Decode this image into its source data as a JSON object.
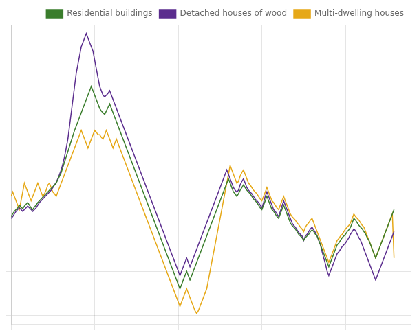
{
  "chart_data": {
    "type": "line",
    "series": [
      {
        "name": "Residential buildings",
        "color": "#3a7d2c",
        "values": [
          1.2,
          1.5,
          1.8,
          2.0,
          2.2,
          2.5,
          2.3,
          2.1,
          2.4,
          2.6,
          2.8,
          2.5,
          2.2,
          2.0,
          2.3,
          2.5,
          2.8,
          3.0,
          3.2,
          3.4,
          3.6,
          3.8,
          4.0,
          4.2,
          4.4,
          4.6,
          4.8,
          5.0,
          5.4,
          5.8,
          6.2,
          6.8,
          7.4,
          8.0,
          8.6,
          9.2,
          9.8,
          10.4,
          11.0,
          11.5,
          12.0,
          12.5,
          13.0,
          13.5,
          14.0,
          14.5,
          15.0,
          15.5,
          16.0,
          15.5,
          15.0,
          14.5,
          14.0,
          13.5,
          13.2,
          13.0,
          12.8,
          13.2,
          13.6,
          14.0,
          13.5,
          13.0,
          12.5,
          12.0,
          11.5,
          11.0,
          10.5,
          10.0,
          9.5,
          9.0,
          8.5,
          8.0,
          7.5,
          7.0,
          6.5,
          6.0,
          5.5,
          5.0,
          4.5,
          4.0,
          3.5,
          3.0,
          2.5,
          2.0,
          1.5,
          1.0,
          0.5,
          0.0,
          -0.5,
          -1.0,
          -1.5,
          -2.0,
          -2.5,
          -3.0,
          -3.5,
          -4.0,
          -4.5,
          -5.0,
          -5.5,
          -6.0,
          -6.5,
          -7.0,
          -6.5,
          -6.0,
          -5.5,
          -5.0,
          -5.5,
          -6.0,
          -5.5,
          -5.0,
          -4.5,
          -4.0,
          -3.5,
          -3.0,
          -2.5,
          -2.0,
          -1.5,
          -1.0,
          -0.5,
          0.0,
          0.5,
          1.0,
          1.5,
          2.0,
          2.5,
          3.0,
          3.5,
          4.0,
          4.5,
          5.0,
          5.5,
          5.0,
          4.5,
          4.0,
          3.8,
          3.5,
          3.8,
          4.2,
          4.5,
          4.8,
          4.5,
          4.2,
          4.0,
          3.8,
          3.5,
          3.2,
          3.0,
          2.8,
          2.5,
          2.2,
          2.0,
          2.5,
          3.0,
          3.5,
          3.0,
          2.5,
          2.0,
          1.8,
          1.5,
          1.2,
          1.0,
          1.5,
          2.0,
          2.5,
          2.0,
          1.5,
          1.0,
          0.5,
          0.2,
          0.0,
          -0.2,
          -0.5,
          -0.8,
          -1.0,
          -1.2,
          -1.5,
          -1.2,
          -1.0,
          -0.8,
          -0.5,
          -0.3,
          -0.5,
          -0.8,
          -1.0,
          -1.5,
          -2.0,
          -2.5,
          -3.0,
          -3.5,
          -4.0,
          -4.5,
          -4.0,
          -3.5,
          -3.0,
          -2.5,
          -2.0,
          -1.8,
          -1.5,
          -1.2,
          -1.0,
          -0.8,
          -0.5,
          -0.3,
          0.0,
          0.5,
          1.0,
          0.8,
          0.5,
          0.2,
          0.0,
          -0.2,
          -0.5,
          -0.8,
          -1.2,
          -1.5,
          -2.0,
          -2.5,
          -3.0,
          -3.5,
          -3.0,
          -2.5,
          -2.0,
          -1.5,
          -1.0,
          -0.5,
          0.0,
          0.5,
          1.0,
          1.5,
          2.0
        ]
      },
      {
        "name": "Detached houses of wood",
        "color": "#5b2d8e",
        "values": [
          1.0,
          1.2,
          1.5,
          1.8,
          2.0,
          2.2,
          2.0,
          1.8,
          2.0,
          2.2,
          2.4,
          2.2,
          2.0,
          1.8,
          2.0,
          2.2,
          2.5,
          2.8,
          3.0,
          3.2,
          3.4,
          3.6,
          3.8,
          4.0,
          4.2,
          4.5,
          4.8,
          5.1,
          5.5,
          6.0,
          6.5,
          7.2,
          8.0,
          9.0,
          10.0,
          11.5,
          13.0,
          14.5,
          16.0,
          17.5,
          18.5,
          19.5,
          20.5,
          21.0,
          21.5,
          22.0,
          21.5,
          21.0,
          20.5,
          20.0,
          19.0,
          18.0,
          17.0,
          16.0,
          15.5,
          15.0,
          14.8,
          15.0,
          15.2,
          15.5,
          15.0,
          14.5,
          14.0,
          13.5,
          13.0,
          12.5,
          12.0,
          11.5,
          11.0,
          10.5,
          10.0,
          9.5,
          9.0,
          8.5,
          8.0,
          7.5,
          7.0,
          6.5,
          6.0,
          5.5,
          5.0,
          4.5,
          4.0,
          3.5,
          3.0,
          2.5,
          2.0,
          1.5,
          1.0,
          0.5,
          0.0,
          -0.5,
          -1.0,
          -1.5,
          -2.0,
          -2.5,
          -3.0,
          -3.5,
          -4.0,
          -4.5,
          -5.0,
          -5.5,
          -5.0,
          -4.5,
          -4.0,
          -3.5,
          -4.0,
          -4.5,
          -4.0,
          -3.5,
          -3.0,
          -2.5,
          -2.0,
          -1.5,
          -1.0,
          -0.5,
          0.0,
          0.5,
          1.0,
          1.5,
          2.0,
          2.5,
          3.0,
          3.5,
          4.0,
          4.5,
          5.0,
          5.5,
          6.0,
          6.5,
          6.0,
          5.5,
          5.0,
          4.5,
          4.2,
          4.0,
          4.2,
          4.8,
          5.2,
          5.5,
          5.0,
          4.5,
          4.2,
          4.0,
          3.8,
          3.5,
          3.2,
          3.0,
          2.8,
          2.5,
          2.2,
          2.8,
          3.5,
          4.0,
          3.5,
          3.0,
          2.5,
          2.0,
          1.8,
          1.5,
          1.2,
          1.8,
          2.4,
          3.0,
          2.5,
          2.0,
          1.5,
          1.0,
          0.5,
          0.2,
          0.0,
          -0.3,
          -0.6,
          -0.8,
          -1.0,
          -1.5,
          -1.0,
          -0.8,
          -0.5,
          -0.2,
          0.0,
          -0.3,
          -0.6,
          -1.0,
          -1.5,
          -2.0,
          -2.8,
          -3.5,
          -4.2,
          -5.0,
          -5.5,
          -5.0,
          -4.5,
          -4.0,
          -3.5,
          -3.0,
          -2.8,
          -2.5,
          -2.2,
          -2.0,
          -1.8,
          -1.5,
          -1.2,
          -0.8,
          -0.5,
          -0.2,
          -0.4,
          -0.8,
          -1.2,
          -1.5,
          -2.0,
          -2.5,
          -3.0,
          -3.5,
          -4.0,
          -4.5,
          -5.0,
          -5.5,
          -6.0,
          -5.5,
          -5.0,
          -4.5,
          -4.0,
          -3.5,
          -3.0,
          -2.5,
          -2.0,
          -1.5,
          -1.0,
          -0.5
        ]
      },
      {
        "name": "Multi-dwelling houses",
        "color": "#e6a817",
        "values": [
          3.5,
          4.0,
          3.5,
          3.0,
          2.5,
          2.0,
          3.0,
          4.0,
          5.0,
          4.5,
          4.0,
          3.5,
          3.0,
          3.5,
          4.0,
          4.5,
          5.0,
          4.5,
          4.0,
          3.5,
          3.8,
          4.2,
          4.8,
          5.0,
          4.5,
          4.0,
          3.8,
          3.5,
          4.0,
          4.5,
          5.0,
          5.5,
          6.0,
          6.5,
          7.0,
          7.5,
          8.0,
          8.5,
          9.0,
          9.5,
          10.0,
          10.5,
          11.0,
          10.5,
          10.0,
          9.5,
          9.0,
          9.5,
          10.0,
          10.5,
          11.0,
          10.8,
          10.5,
          10.5,
          10.2,
          10.0,
          10.5,
          11.0,
          10.5,
          10.0,
          9.5,
          9.0,
          9.5,
          10.0,
          9.5,
          9.0,
          8.5,
          8.0,
          7.5,
          7.0,
          6.5,
          6.0,
          5.5,
          5.0,
          4.5,
          4.0,
          3.5,
          3.0,
          2.5,
          2.0,
          1.5,
          1.0,
          0.5,
          0.0,
          -0.5,
          -1.0,
          -1.5,
          -2.0,
          -2.5,
          -3.0,
          -3.5,
          -4.0,
          -4.5,
          -5.0,
          -5.5,
          -6.0,
          -6.5,
          -7.0,
          -7.5,
          -8.0,
          -8.5,
          -9.0,
          -8.5,
          -8.0,
          -7.5,
          -7.0,
          -7.5,
          -8.0,
          -8.5,
          -9.0,
          -9.5,
          -9.8,
          -9.5,
          -9.0,
          -8.5,
          -8.0,
          -7.5,
          -7.0,
          -6.0,
          -5.0,
          -4.0,
          -3.0,
          -2.0,
          -1.0,
          0.0,
          1.0,
          2.0,
          3.0,
          4.0,
          5.0,
          6.0,
          7.0,
          6.5,
          6.0,
          5.5,
          5.0,
          5.2,
          5.8,
          6.2,
          6.5,
          6.0,
          5.5,
          5.0,
          4.8,
          4.5,
          4.2,
          4.0,
          3.8,
          3.5,
          3.2,
          3.0,
          3.5,
          4.0,
          4.5,
          4.0,
          3.5,
          3.0,
          2.8,
          2.5,
          2.2,
          2.0,
          2.5,
          3.0,
          3.5,
          3.0,
          2.5,
          2.0,
          1.5,
          1.2,
          1.0,
          0.8,
          0.5,
          0.3,
          0.0,
          -0.2,
          -0.5,
          0.0,
          0.3,
          0.5,
          0.8,
          1.0,
          0.5,
          0.0,
          -0.5,
          -1.0,
          -1.5,
          -2.0,
          -2.5,
          -3.0,
          -3.5,
          -4.0,
          -3.5,
          -3.0,
          -2.5,
          -2.0,
          -1.5,
          -1.3,
          -1.0,
          -0.8,
          -0.5,
          -0.2,
          0.0,
          0.2,
          0.5,
          1.0,
          1.5,
          1.2,
          1.0,
          0.8,
          0.5,
          0.2,
          0.0,
          -0.5,
          -1.0,
          -1.5,
          -2.0,
          -2.5,
          -3.0,
          -3.5,
          -3.0,
          -2.5,
          -2.0,
          -1.5,
          -1.0,
          -0.5,
          0.0,
          0.5,
          1.0,
          1.5,
          -3.5
        ]
      }
    ],
    "xlim": [
      0,
      239
    ],
    "xticks": [
      0,
      50,
      100,
      150,
      200
    ],
    "ylim": [
      -11,
      23
    ],
    "yticks": [
      -10,
      -5,
      0,
      5,
      10,
      15,
      20
    ],
    "grid": true,
    "legend": "upper right",
    "tick_labels": false
  }
}
